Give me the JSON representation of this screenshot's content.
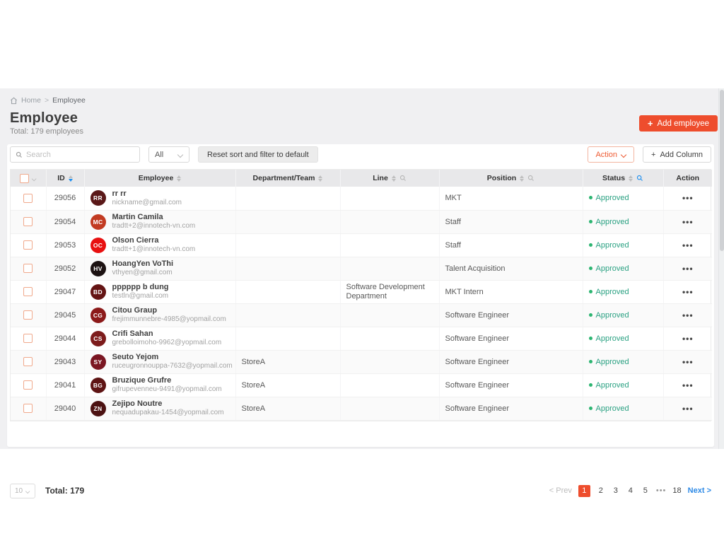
{
  "breadcrumb": {
    "home": "Home",
    "separator": ">",
    "current": "Employee"
  },
  "header": {
    "title": "Employee",
    "subtitle": "Total: 179 employees",
    "add_employee": {
      "icon": "+",
      "label": "Add employee"
    }
  },
  "toolbar": {
    "search_placeholder": "Search",
    "filter_selected": "All",
    "reset_label": "Reset sort and filter to default",
    "action_label": "Action",
    "add_column": {
      "icon": "+",
      "label": "Add Column"
    }
  },
  "icons": {
    "home": "house-icon",
    "search": "magnifier-icon",
    "sort": "caret-up-down",
    "chevron_down": "chevron-down",
    "more": "•••",
    "plus": "+"
  },
  "table": {
    "columns": [
      {
        "key": "select",
        "label": ""
      },
      {
        "key": "id",
        "label": "ID",
        "sort": true,
        "sort_active": "desc"
      },
      {
        "key": "employee",
        "label": "Employee",
        "sort": true
      },
      {
        "key": "department",
        "label": "Department/Team",
        "sort": true
      },
      {
        "key": "line",
        "label": "Line",
        "sort": true,
        "search": true
      },
      {
        "key": "position",
        "label": "Position",
        "sort": true,
        "search": true
      },
      {
        "key": "status",
        "label": "Status",
        "sort": true,
        "search": true,
        "search_active": true
      },
      {
        "key": "action",
        "label": "Action"
      }
    ],
    "rows": [
      {
        "id": "29056",
        "initials": "RR",
        "avatar_color": "#5a1818",
        "name": "rr rr",
        "email": "nickname@gmail.com",
        "department": "",
        "line": "",
        "position": "MKT",
        "status": "Approved"
      },
      {
        "id": "29054",
        "initials": "MC",
        "avatar_color": "#c23b22",
        "name": "Martin Camila",
        "email": "tradtt+2@innotech-vn.com",
        "department": "",
        "line": "",
        "position": "Staff",
        "status": "Approved"
      },
      {
        "id": "29053",
        "initials": "OC",
        "avatar_color": "#e81010",
        "name": "Olson Cierra",
        "email": "tradtt+1@innotech-vn.com",
        "department": "",
        "line": "",
        "position": "Staff",
        "status": "Approved"
      },
      {
        "id": "29052",
        "initials": "HV",
        "avatar_color": "#1c1212",
        "name": "HoangYen VoThi",
        "email": "vthyen@gmail.com",
        "department": "",
        "line": "",
        "position": "Talent Acquisition",
        "status": "Approved"
      },
      {
        "id": "29047",
        "initials": "BD",
        "avatar_color": "#641414",
        "name": "pppppp b dung",
        "email": "testln@gmail.com",
        "department": "",
        "line": "Software Development Department",
        "position": "MKT Intern",
        "status": "Approved"
      },
      {
        "id": "29045",
        "initials": "CG",
        "avatar_color": "#8c1a1a",
        "name": "Citou Graup",
        "email": "frejimmunnebre-4985@yopmail.com",
        "department": "",
        "line": "",
        "position": "Software Engineer",
        "status": "Approved"
      },
      {
        "id": "29044",
        "initials": "CS",
        "avatar_color": "#7d1c1c",
        "name": "Crifi Sahan",
        "email": "grebolloimoho-9962@yopmail.com",
        "department": "",
        "line": "",
        "position": "Software Engineer",
        "status": "Approved"
      },
      {
        "id": "29043",
        "initials": "SY",
        "avatar_color": "#7a1622",
        "name": "Seuto Yejom",
        "email": "ruceugronnouppa-7632@yopmail.com",
        "department": "StoreA",
        "line": "",
        "position": "Software Engineer",
        "status": "Approved"
      },
      {
        "id": "29041",
        "initials": "BG",
        "avatar_color": "#5e1414",
        "name": "Bruzique Grufre",
        "email": "gifrupevenneu-9491@yopmail.com",
        "department": "StoreA",
        "line": "",
        "position": "Software Engineer",
        "status": "Approved"
      },
      {
        "id": "29040",
        "initials": "ZN",
        "avatar_color": "#4c1212",
        "name": "Zejipo Noutre",
        "email": "nequadupakau-1454@yopmail.com",
        "department": "StoreA",
        "line": "",
        "position": "Software Engineer",
        "status": "Approved"
      }
    ],
    "action_glyph": "•••"
  },
  "pagination": {
    "page_size": "10",
    "total_label": "Total: 179",
    "prev_label": "< Prev",
    "pages": [
      "1",
      "2",
      "3",
      "4",
      "5",
      "•••",
      "18"
    ],
    "active_page": "1",
    "next_label": "Next >"
  },
  "colors": {
    "accent_orange": "#ee4d2d",
    "link_blue": "#2e8ae6",
    "sort_active_blue": "#1a8df0",
    "status_approved": "#2aa182",
    "status_dot": "#2cb571",
    "page_background": "#f0f0f2",
    "table_header_background": "#e8e8ea"
  }
}
